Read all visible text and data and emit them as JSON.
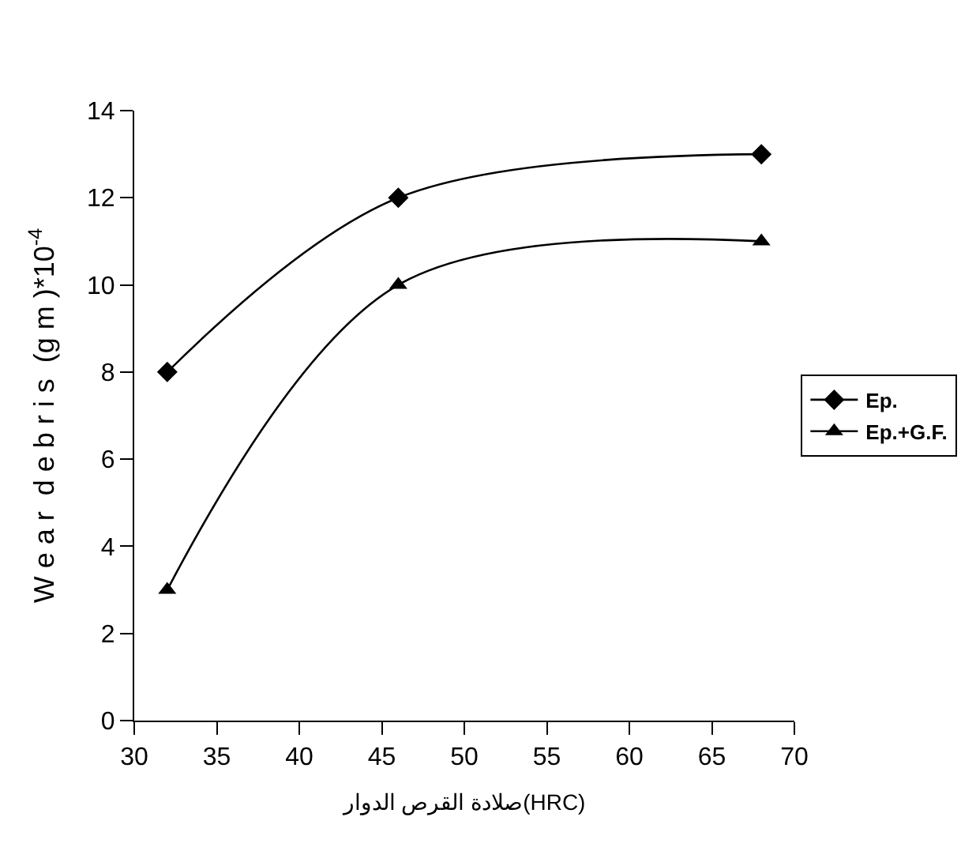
{
  "chart_data": {
    "type": "line",
    "xlabel": "صلادة القرص الدوار(HRC)",
    "ylabel": "W e a r  d e b r i s  (g m )*10$^{-4}$",
    "x": [
      32,
      46,
      68
    ],
    "series": [
      {
        "name": "Ep.",
        "color": "#000000",
        "values": [
          8,
          12,
          13
        ],
        "marker": "diamond"
      },
      {
        "name": "Ep.+G.F.",
        "color": "#000000",
        "values": [
          3,
          10,
          11
        ],
        "marker": "triangle"
      }
    ],
    "xlim": [
      30,
      70
    ],
    "xticks": [
      30,
      35,
      40,
      45,
      50,
      55,
      60,
      65,
      70
    ],
    "ylim": [
      0,
      14
    ],
    "yticks": [
      0,
      2,
      4,
      6,
      8,
      10,
      12,
      14
    ],
    "legend": "right",
    "line_style": "solid"
  }
}
